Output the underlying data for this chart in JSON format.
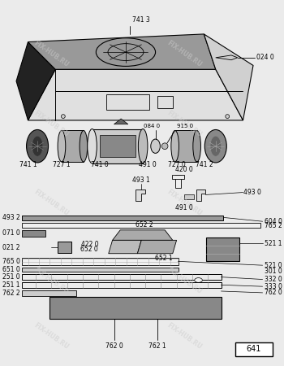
{
  "bg_color": "#ebebeb",
  "watermark_color": "#cccccc",
  "watermark_text": "FIX-HUB.RU",
  "page_number": "641",
  "title_label": "741 3",
  "title_label2": "024 0"
}
